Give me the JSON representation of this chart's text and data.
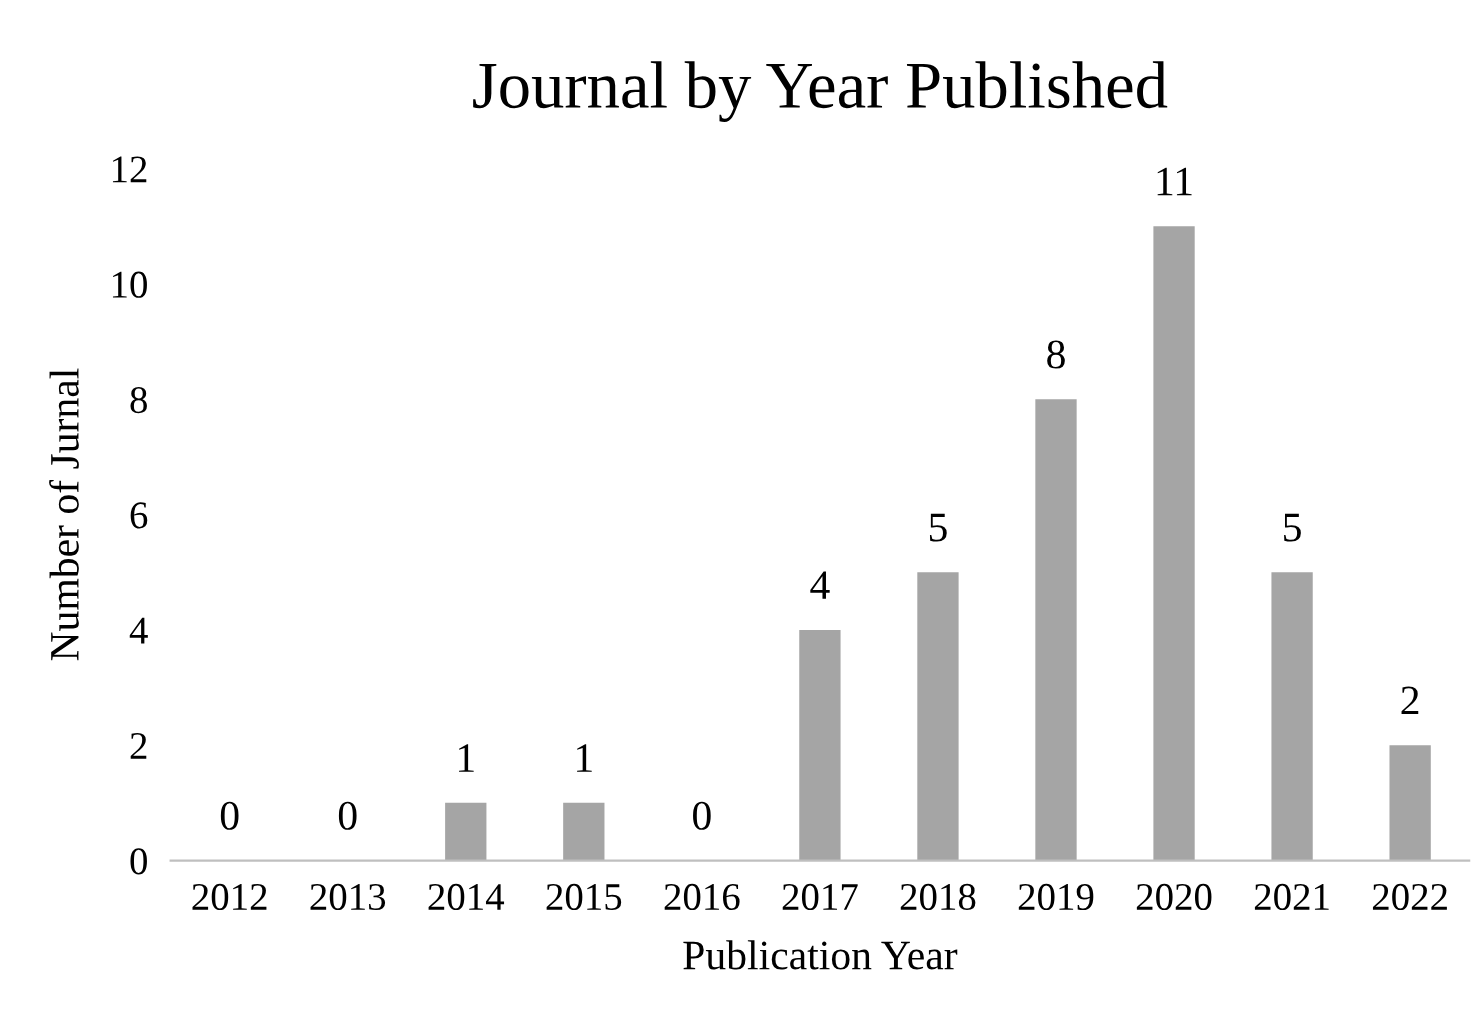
{
  "chart_data": {
    "type": "bar",
    "title": "Journal by Year Published",
    "xlabel": "Publication Year",
    "ylabel": "Number of Jurnal",
    "categories": [
      "2012",
      "2013",
      "2014",
      "2015",
      "2016",
      "2017",
      "2018",
      "2019",
      "2020",
      "2021",
      "2022"
    ],
    "values": [
      0,
      0,
      1,
      1,
      0,
      4,
      5,
      8,
      11,
      5,
      2
    ],
    "color": "#a5a5a5",
    "ylim": [
      0,
      12
    ],
    "yticks": [
      0,
      2,
      4,
      6,
      8,
      10,
      12
    ],
    "grid": false,
    "data_labels": true,
    "legend": false
  }
}
